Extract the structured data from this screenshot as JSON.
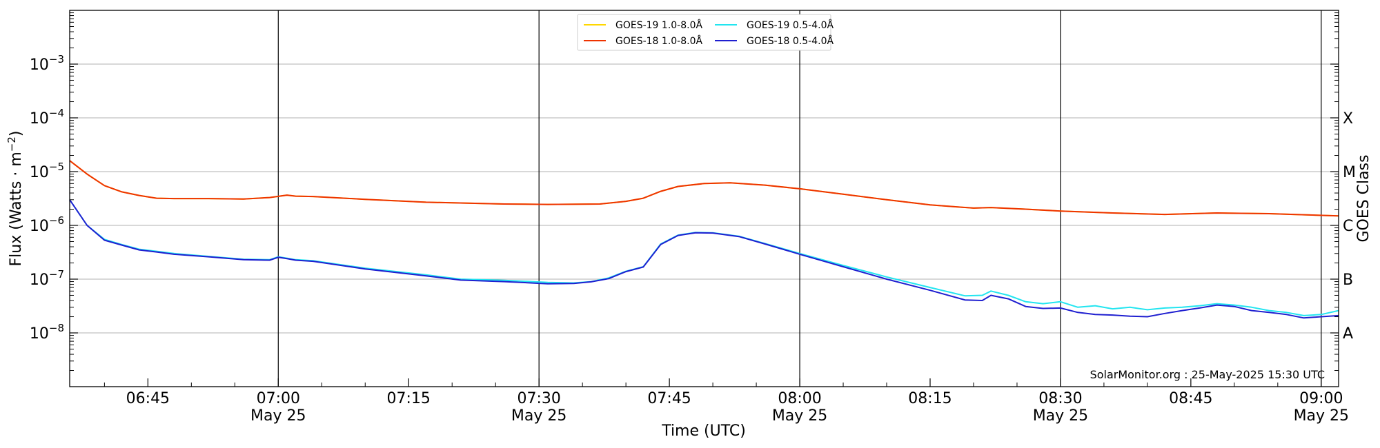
{
  "chart_data": {
    "type": "line",
    "ylabel": "Flux (Watts · m",
    "ylabel_sup": "−2",
    "ylabel_end": ")",
    "xlabel": "Time (UTC)",
    "right_label": "GOES Class",
    "credit": "SolarMonitor.org : 25-May-2025 15:30 UTC",
    "y_scale": "log",
    "ylim": [
      1e-09,
      0.01
    ],
    "xlim": [
      "06:36",
      "09:02"
    ],
    "grid": "horizontal",
    "legend_position": "top-center",
    "y_ticks": [
      {
        "base": "10",
        "exp": "−3",
        "value": 0.001
      },
      {
        "base": "10",
        "exp": "−4",
        "value": 0.0001
      },
      {
        "base": "10",
        "exp": "−5",
        "value": 1e-05
      },
      {
        "base": "10",
        "exp": "−6",
        "value": 1e-06
      },
      {
        "base": "10",
        "exp": "−7",
        "value": 1e-07
      },
      {
        "base": "10",
        "exp": "−8",
        "value": 1e-08
      }
    ],
    "goes_classes": [
      {
        "label": "X",
        "value": 0.0001
      },
      {
        "label": "M",
        "value": 1e-05
      },
      {
        "label": "C",
        "value": 1e-06
      },
      {
        "label": "B",
        "value": 1e-07
      },
      {
        "label": "A",
        "value": 1e-08
      }
    ],
    "x_ticks": [
      {
        "time": "06:45",
        "label": "06:45",
        "date": ""
      },
      {
        "time": "07:00",
        "label": "07:00",
        "date": "May 25"
      },
      {
        "time": "07:15",
        "label": "07:15",
        "date": ""
      },
      {
        "time": "07:30",
        "label": "07:30",
        "date": "May 25"
      },
      {
        "time": "07:45",
        "label": "07:45",
        "date": ""
      },
      {
        "time": "08:00",
        "label": "08:00",
        "date": "May 25"
      },
      {
        "time": "08:15",
        "label": "08:15",
        "date": ""
      },
      {
        "time": "08:30",
        "label": "08:30",
        "date": "May 25"
      },
      {
        "time": "08:45",
        "label": "08:45",
        "date": ""
      },
      {
        "time": "09:00",
        "label": "09:00",
        "date": "May 25"
      }
    ],
    "vlines": [
      "07:00",
      "07:30",
      "08:00",
      "08:30",
      "09:00"
    ],
    "series": [
      {
        "name": "GOES-19 1.0-8.0Å",
        "color": "#ffd700",
        "x": [
          "06:36",
          "06:38",
          "06:40",
          "06:42",
          "06:44",
          "06:46",
          "06:48",
          "06:52",
          "06:56",
          "06:59",
          "07:01",
          "07:02",
          "07:04",
          "07:10",
          "07:17",
          "07:26",
          "07:31",
          "07:37",
          "07:40",
          "07:42",
          "07:44",
          "07:46",
          "07:49",
          "07:52",
          "07:56",
          "08:00",
          "08:05",
          "08:10",
          "08:15",
          "08:20",
          "08:22",
          "08:26",
          "08:30",
          "08:36",
          "08:42",
          "08:48",
          "08:54",
          "09:02"
        ],
        "y": [
          1.6e-05,
          9e-06,
          5.5e-06,
          4.2e-06,
          3.6e-06,
          3.2e-06,
          3.15e-06,
          3.15e-06,
          3.1e-06,
          3.3e-06,
          3.65e-06,
          3.5e-06,
          3.45e-06,
          3.05e-06,
          2.7e-06,
          2.5e-06,
          2.45e-06,
          2.5e-06,
          2.8e-06,
          3.2e-06,
          4.3e-06,
          5.3e-06,
          6e-06,
          6.2e-06,
          5.6e-06,
          4.8e-06,
          3.8e-06,
          3e-06,
          2.4e-06,
          2.1e-06,
          2.15e-06,
          2e-06,
          1.85e-06,
          1.7e-06,
          1.6e-06,
          1.7e-06,
          1.65e-06,
          1.5e-06
        ]
      },
      {
        "name": "GOES-18 1.0-8.0Å",
        "color": "#ee3300",
        "x": [
          "06:36",
          "06:38",
          "06:40",
          "06:42",
          "06:44",
          "06:46",
          "06:48",
          "06:52",
          "06:56",
          "06:59",
          "07:01",
          "07:02",
          "07:04",
          "07:10",
          "07:17",
          "07:26",
          "07:31",
          "07:37",
          "07:40",
          "07:42",
          "07:44",
          "07:46",
          "07:49",
          "07:52",
          "07:56",
          "08:00",
          "08:05",
          "08:10",
          "08:15",
          "08:20",
          "08:22",
          "08:26",
          "08:30",
          "08:36",
          "08:42",
          "08:48",
          "08:54",
          "09:02"
        ],
        "y": [
          1.6e-05,
          9e-06,
          5.5e-06,
          4.2e-06,
          3.6e-06,
          3.2e-06,
          3.15e-06,
          3.15e-06,
          3.1e-06,
          3.3e-06,
          3.65e-06,
          3.5e-06,
          3.45e-06,
          3.05e-06,
          2.7e-06,
          2.5e-06,
          2.45e-06,
          2.5e-06,
          2.8e-06,
          3.2e-06,
          4.3e-06,
          5.3e-06,
          6e-06,
          6.2e-06,
          5.6e-06,
          4.8e-06,
          3.8e-06,
          3e-06,
          2.4e-06,
          2.1e-06,
          2.15e-06,
          2e-06,
          1.85e-06,
          1.7e-06,
          1.6e-06,
          1.7e-06,
          1.65e-06,
          1.5e-06
        ]
      },
      {
        "name": "GOES-19 0.5-4.0Å",
        "color": "#22e5f0",
        "x": [
          "06:36",
          "06:38",
          "06:40",
          "06:42",
          "06:44",
          "06:46",
          "06:48",
          "06:52",
          "06:56",
          "06:59",
          "07:00",
          "07:01",
          "07:02",
          "07:04",
          "07:10",
          "07:17",
          "07:21",
          "07:26",
          "07:31",
          "07:34",
          "07:36",
          "07:38",
          "07:40",
          "07:42",
          "07:44",
          "07:46",
          "07:48",
          "07:50",
          "07:53",
          "07:56",
          "08:00",
          "08:05",
          "08:10",
          "08:15",
          "08:19",
          "08:21",
          "08:22",
          "08:24",
          "08:26",
          "08:28",
          "08:30",
          "08:32",
          "08:34",
          "08:36",
          "08:38",
          "08:40",
          "08:42",
          "08:44",
          "08:46",
          "08:48",
          "08:50",
          "08:52",
          "08:54",
          "08:56",
          "08:58",
          "09:00",
          "09:02"
        ],
        "y": [
          3e-06,
          1e-06,
          5.5e-07,
          4.4e-07,
          3.6e-07,
          3.3e-07,
          3e-07,
          2.65e-07,
          2.35e-07,
          2.3e-07,
          2.6e-07,
          2.45e-07,
          2.3e-07,
          2.2e-07,
          1.6e-07,
          1.2e-07,
          1e-07,
          9.5e-08,
          8.7e-08,
          8.5e-08,
          9e-08,
          1.05e-07,
          1.4e-07,
          1.7e-07,
          4.5e-07,
          6.6e-07,
          7.4e-07,
          7.3e-07,
          6.3e-07,
          4.6e-07,
          3e-07,
          1.8e-07,
          1.1e-07,
          7e-08,
          4.9e-08,
          5e-08,
          6e-08,
          5e-08,
          3.8e-08,
          3.5e-08,
          3.8e-08,
          3e-08,
          3.2e-08,
          2.8e-08,
          3e-08,
          2.7e-08,
          2.9e-08,
          3e-08,
          3.2e-08,
          3.5e-08,
          3.3e-08,
          3e-08,
          2.6e-08,
          2.4e-08,
          2.1e-08,
          2.2e-08,
          2.6e-08
        ]
      },
      {
        "name": "GOES-18 0.5-4.0Å",
        "color": "#1f1fd0",
        "x": [
          "06:36",
          "06:38",
          "06:40",
          "06:42",
          "06:44",
          "06:46",
          "06:48",
          "06:52",
          "06:56",
          "06:59",
          "07:00",
          "07:01",
          "07:02",
          "07:04",
          "07:10",
          "07:17",
          "07:21",
          "07:26",
          "07:31",
          "07:34",
          "07:36",
          "07:38",
          "07:40",
          "07:42",
          "07:44",
          "07:46",
          "07:48",
          "07:50",
          "07:53",
          "07:56",
          "08:00",
          "08:05",
          "08:10",
          "08:15",
          "08:19",
          "08:21",
          "08:22",
          "08:24",
          "08:26",
          "08:28",
          "08:30",
          "08:32",
          "08:34",
          "08:36",
          "08:38",
          "08:40",
          "08:42",
          "08:44",
          "08:46",
          "08:48",
          "08:50",
          "08:52",
          "08:54",
          "08:56",
          "08:58",
          "09:00",
          "09:02"
        ],
        "y": [
          3e-06,
          1e-06,
          5.3e-07,
          4.3e-07,
          3.5e-07,
          3.2e-07,
          2.9e-07,
          2.6e-07,
          2.3e-07,
          2.25e-07,
          2.55e-07,
          2.4e-07,
          2.25e-07,
          2.15e-07,
          1.55e-07,
          1.15e-07,
          9.6e-08,
          9e-08,
          8.2e-08,
          8.3e-08,
          8.9e-08,
          1.02e-07,
          1.38e-07,
          1.68e-07,
          4.4e-07,
          6.5e-07,
          7.3e-07,
          7.2e-07,
          6.2e-07,
          4.5e-07,
          2.9e-07,
          1.7e-07,
          1e-07,
          6.2e-08,
          4.1e-08,
          4e-08,
          5e-08,
          4.3e-08,
          3.1e-08,
          2.85e-08,
          2.9e-08,
          2.4e-08,
          2.2e-08,
          2.15e-08,
          2.05e-08,
          2e-08,
          2.3e-08,
          2.6e-08,
          2.9e-08,
          3.3e-08,
          3.1e-08,
          2.6e-08,
          2.4e-08,
          2.2e-08,
          1.9e-08,
          2e-08,
          2.1e-08
        ]
      }
    ]
  }
}
